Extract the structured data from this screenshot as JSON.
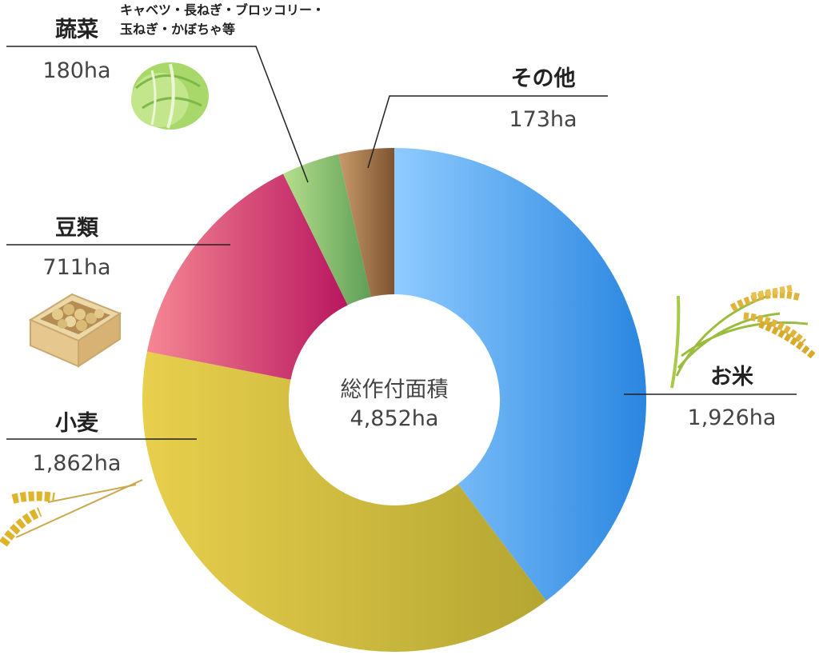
{
  "chart_data": {
    "type": "pie",
    "variant": "donut",
    "center_title": "総作付面積",
    "center_value": "4,852ha",
    "categories": [
      "お米",
      "小麦",
      "豆類",
      "蔬菜",
      "その他"
    ],
    "values": [
      1926,
      1862,
      711,
      180,
      173
    ],
    "value_labels": [
      "1,926ha",
      "1,862ha",
      "711ha",
      "180ha",
      "173ha"
    ],
    "unit": "ha",
    "notes": {
      "蔬菜": [
        "キャベツ・長ねぎ・ブロッコリー・",
        "玉ねぎ・かぼちゃ等"
      ]
    },
    "colors": [
      [
        "#8fcbff",
        "#2a86e0"
      ],
      [
        "#e8cf4d",
        "#b4a632"
      ],
      [
        "#f58793",
        "#b8165f"
      ],
      [
        "#b5df8c",
        "#5e9e57"
      ],
      [
        "#c99a6b",
        "#7d5430"
      ]
    ],
    "icons": [
      "rice-plant-icon",
      "wheat-icon",
      "soybeans-box-icon",
      "cabbage-icon",
      ""
    ]
  }
}
